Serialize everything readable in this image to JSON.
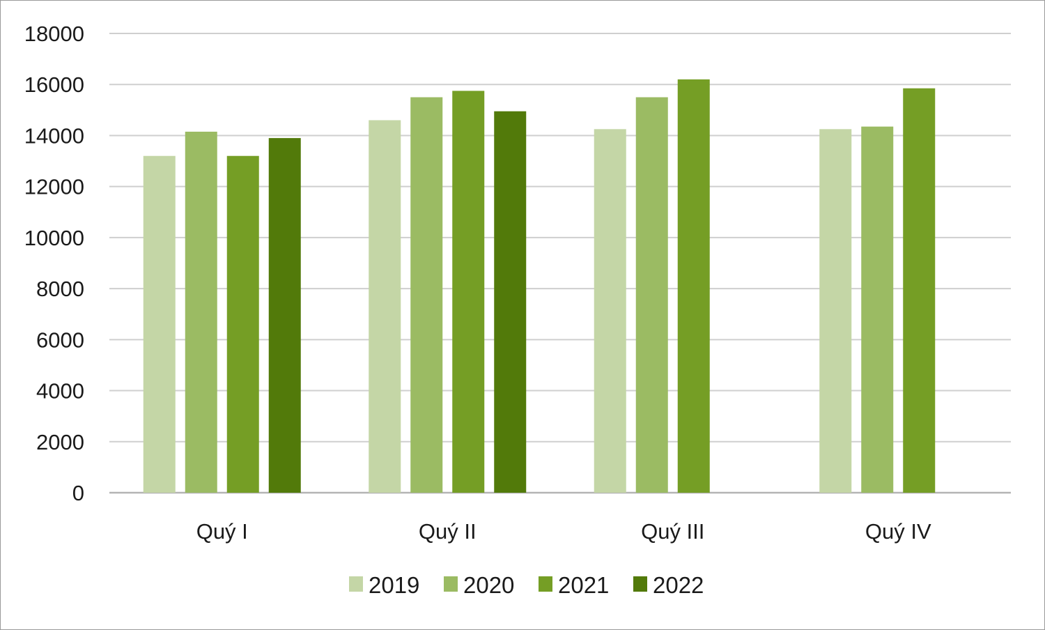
{
  "chart_data": {
    "type": "bar",
    "categories": [
      "Quý I",
      "Quý II",
      "Quý III",
      "Quý IV"
    ],
    "series": [
      {
        "name": "2019",
        "values": [
          13200,
          14600,
          14250,
          14250
        ],
        "color": "#c4d6a6"
      },
      {
        "name": "2020",
        "values": [
          14150,
          15500,
          15500,
          14350
        ],
        "color": "#9bbb63"
      },
      {
        "name": "2021",
        "values": [
          13200,
          15750,
          16200,
          15850
        ],
        "color": "#759e25"
      },
      {
        "name": "2022",
        "values": [
          13900,
          14950,
          null,
          null
        ],
        "color": "#527a0a"
      }
    ],
    "ylim": [
      0,
      18000
    ],
    "yticks": [
      0,
      2000,
      4000,
      6000,
      8000,
      10000,
      12000,
      14000,
      16000,
      18000
    ],
    "grid": true,
    "legend_position": "bottom-center",
    "title": "",
    "xlabel": "",
    "ylabel": ""
  }
}
